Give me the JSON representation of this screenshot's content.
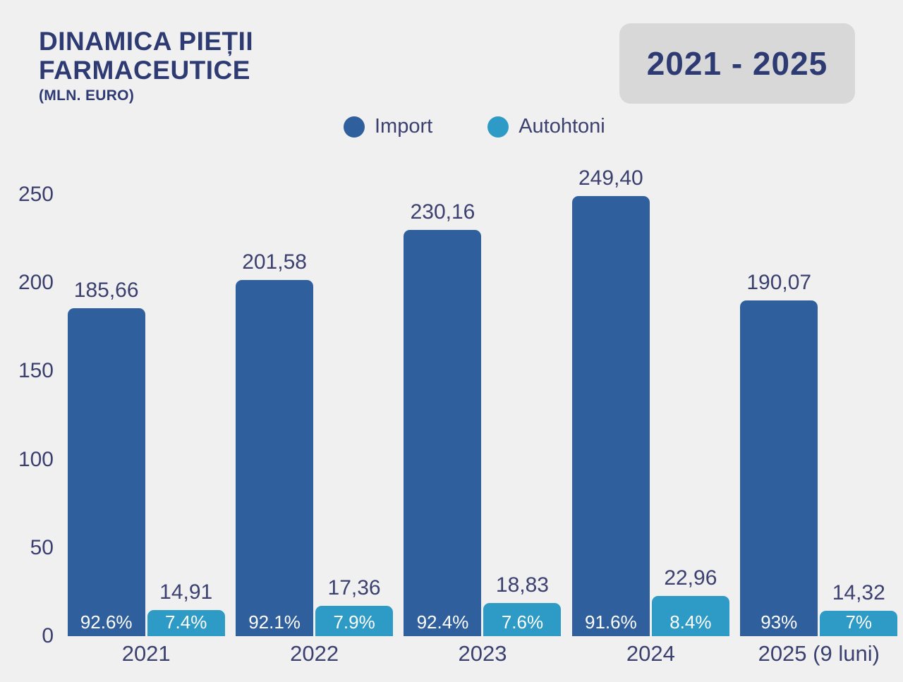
{
  "header": {
    "title_line1": "DINAMICA PIEȚII",
    "title_line2": "FARMACEUTICE",
    "subtitle": "(MLN. EURO)",
    "period_badge": "2021 - 2025"
  },
  "colors": {
    "background": "#f0f0f1",
    "import_bar": "#2f5f9c",
    "autohtoni_bar": "#2d9bc5",
    "title_text": "#2e3a72",
    "chart_text": "#3b406f",
    "badge_background": "#d8d8d9",
    "bar_label_text": "#ffffff"
  },
  "chart_data": {
    "type": "bar",
    "title": "DINAMICA PIEȚII FARMACEUTICE (MLN. EURO)",
    "categories": [
      "2021",
      "2022",
      "2023",
      "2024",
      "2025 (9 luni)"
    ],
    "series": [
      {
        "name": "Import",
        "color": "#2f5f9c",
        "values": [
          185.66,
          201.58,
          230.16,
          249.4,
          190.07
        ],
        "value_labels": [
          "185,66",
          "201,58",
          "230,16",
          "249,40",
          "190,07"
        ],
        "percent_labels": [
          "92.6%",
          "92.1%",
          "92.4%",
          "91.6%",
          "93%"
        ]
      },
      {
        "name": "Autohtoni",
        "color": "#2d9bc5",
        "values": [
          14.91,
          17.36,
          18.83,
          22.96,
          14.32
        ],
        "value_labels": [
          "14,91",
          "17,36",
          "18,83",
          "22,96",
          "14,32"
        ],
        "percent_labels": [
          "7.4%",
          "7.9%",
          "7.6%",
          "8.4%",
          "7%"
        ]
      }
    ],
    "ylabel": "MLN. EURO",
    "ylim": [
      0,
      250
    ],
    "yticks": [
      0,
      50,
      100,
      150,
      200,
      250
    ],
    "grid": false,
    "legend_position": "top-center"
  }
}
